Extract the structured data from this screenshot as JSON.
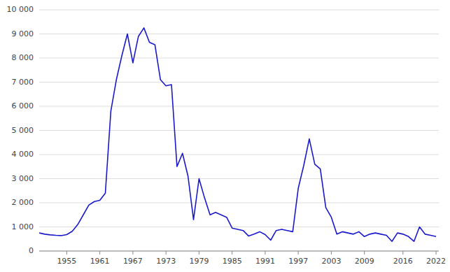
{
  "chart_data": {
    "type": "line",
    "x": [
      1950,
      1951,
      1952,
      1953,
      1954,
      1955,
      1956,
      1957,
      1958,
      1959,
      1960,
      1961,
      1962,
      1963,
      1964,
      1965,
      1966,
      1967,
      1968,
      1969,
      1970,
      1971,
      1972,
      1973,
      1974,
      1975,
      1976,
      1977,
      1978,
      1979,
      1980,
      1981,
      1982,
      1983,
      1984,
      1985,
      1986,
      1987,
      1988,
      1989,
      1990,
      1991,
      1992,
      1993,
      1994,
      1995,
      1996,
      1997,
      1998,
      1999,
      2000,
      2001,
      2002,
      2003,
      2004,
      2005,
      2006,
      2007,
      2008,
      2009,
      2010,
      2011,
      2012,
      2013,
      2014,
      2015,
      2016,
      2017,
      2018,
      2019,
      2020,
      2021,
      2022
    ],
    "values": [
      750,
      700,
      670,
      650,
      640,
      680,
      820,
      1100,
      1500,
      1900,
      2050,
      2100,
      2400,
      5800,
      7100,
      8100,
      9000,
      7800,
      8900,
      9250,
      8650,
      8550,
      7100,
      6850,
      6900,
      3500,
      4050,
      3100,
      1300,
      3000,
      2200,
      1500,
      1600,
      1500,
      1400,
      950,
      900,
      850,
      620,
      700,
      800,
      680,
      450,
      850,
      900,
      850,
      800,
      2600,
      3550,
      4650,
      3600,
      3400,
      1800,
      1400,
      700,
      800,
      750,
      700,
      800,
      600,
      700,
      750,
      700,
      650,
      400,
      750,
      700,
      600,
      400,
      1000,
      700,
      650,
      600
    ],
    "color": "#1a1acc",
    "xlim": [
      1950,
      2022.5
    ],
    "xticks": [
      1955,
      1961,
      1967,
      1973,
      1979,
      1985,
      1991,
      1997,
      2003,
      2009,
      2016,
      2022
    ],
    "ylim": [
      0,
      10000
    ],
    "yticks": [
      0,
      {
        "value": 1000,
        "label": "1 000"
      },
      {
        "value": 2000,
        "label": "2 000"
      },
      {
        "value": 3000,
        "label": "3 000"
      },
      {
        "value": 4000,
        "label": "4 000"
      },
      {
        "value": 5000,
        "label": "5 000"
      },
      {
        "value": 6000,
        "label": "6 000"
      },
      {
        "value": 7000,
        "label": "7 000"
      },
      {
        "value": 8000,
        "label": "8 000"
      },
      {
        "value": 9000,
        "label": "9 000"
      },
      {
        "value": 10000,
        "label": "10 000"
      }
    ],
    "grid": true
  }
}
